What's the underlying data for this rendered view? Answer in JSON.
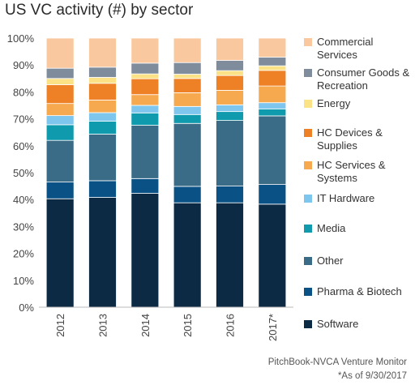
{
  "title": "US VC activity (#) by sector",
  "source": "PitchBook-NVCA Venture Monitor",
  "footnote": "*As of 9/30/2017",
  "chart_data": {
    "type": "bar",
    "stacked": true,
    "percent": true,
    "categories": [
      "2012",
      "2013",
      "2014",
      "2015",
      "2016",
      "2017*"
    ],
    "yticks": [
      "0%",
      "10%",
      "20%",
      "30%",
      "40%",
      "50%",
      "60%",
      "70%",
      "80%",
      "90%",
      "100%"
    ],
    "ylim": [
      0,
      100
    ],
    "legend_position": "right",
    "series": [
      {
        "name": "Software",
        "color": "#0d2a45",
        "values": [
          40.3,
          40.8,
          42.3,
          38.8,
          38.8,
          38.3
        ]
      },
      {
        "name": "Pharma & Biotech",
        "color": "#0a5286",
        "values": [
          6.2,
          6.2,
          5.5,
          6.1,
          6.2,
          7.3
        ]
      },
      {
        "name": "Other",
        "color": "#3a6c87",
        "values": [
          15.5,
          17.3,
          19.8,
          23.4,
          24.4,
          25.5
        ]
      },
      {
        "name": "Media",
        "color": "#0f9aad",
        "values": [
          5.8,
          4.8,
          4.6,
          3.3,
          3.3,
          2.6
        ]
      },
      {
        "name": "IT Hardware",
        "color": "#7fc6ee",
        "values": [
          3.4,
          3.2,
          2.8,
          3.0,
          2.5,
          2.3
        ]
      },
      {
        "name": "HC Services & Systems",
        "color": "#f6a94f",
        "values": [
          4.5,
          4.7,
          4.0,
          5.1,
          5.4,
          6.2
        ]
      },
      {
        "name": "HC Devices & Supplies",
        "color": "#ee8026",
        "values": [
          7.0,
          6.2,
          5.9,
          5.3,
          5.5,
          5.8
        ]
      },
      {
        "name": "Energy",
        "color": "#fbe287",
        "values": [
          2.3,
          2.2,
          1.8,
          1.6,
          1.8,
          1.7
        ]
      },
      {
        "name": "Consumer Goods & Recreation",
        "color": "#7e8c9c",
        "values": [
          3.8,
          3.8,
          4.0,
          4.3,
          3.8,
          3.2
        ]
      },
      {
        "name": "Commercial Services",
        "color": "#fac89e",
        "values": [
          11.2,
          10.8,
          9.3,
          9.1,
          8.3,
          7.1
        ]
      }
    ]
  }
}
